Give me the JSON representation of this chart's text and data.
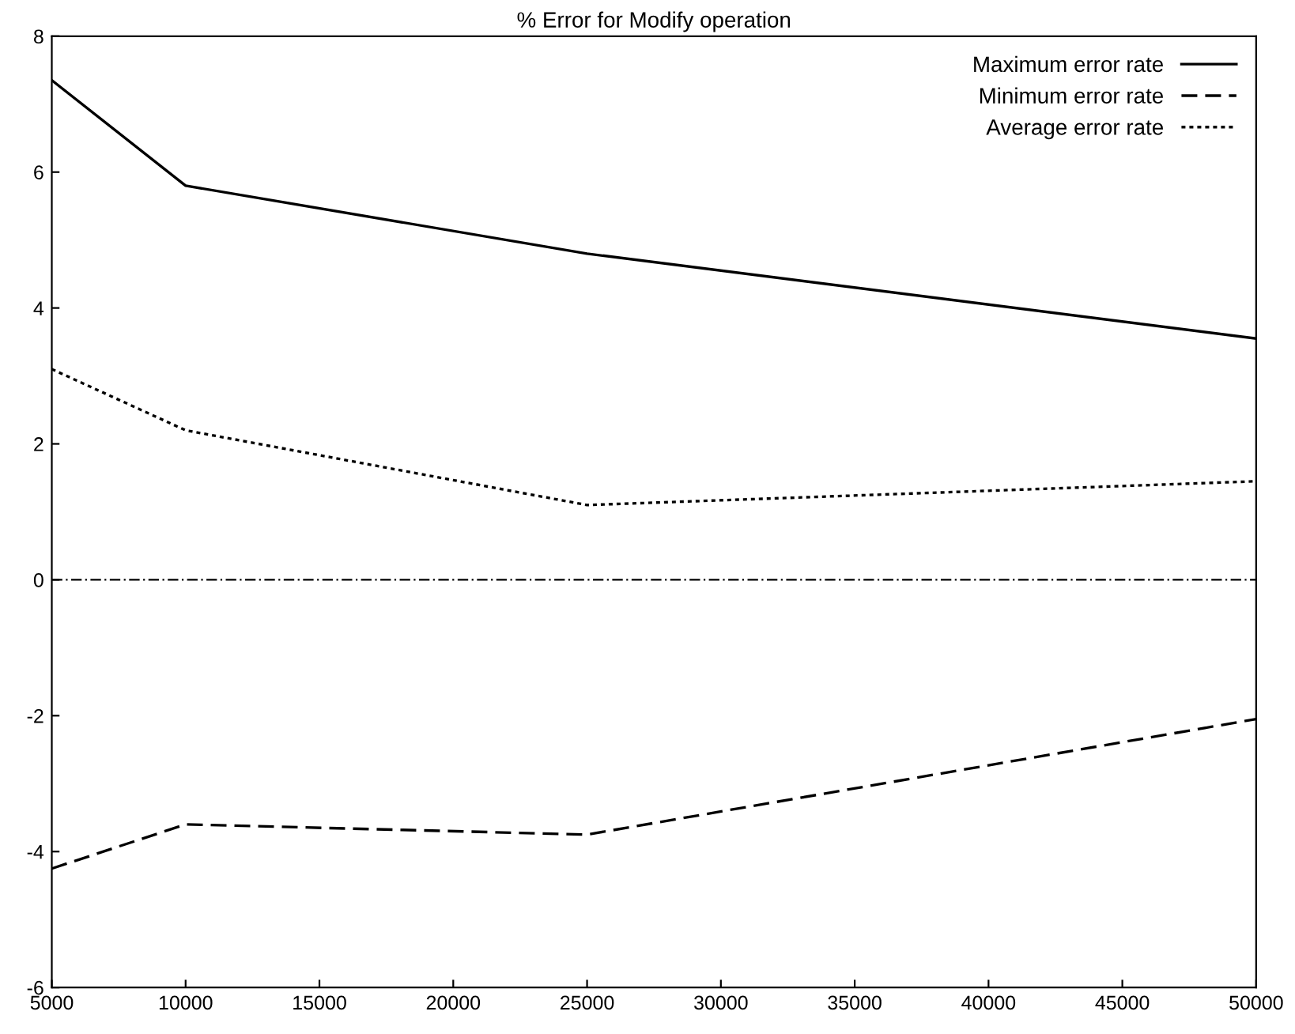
{
  "chart_data": {
    "type": "line",
    "title": "% Error for Modify operation",
    "x": [
      5000,
      10000,
      25000,
      50000
    ],
    "series": [
      {
        "name": "Maximum error rate",
        "color": "#000000",
        "line_style": "solid",
        "values": [
          7.35,
          5.8,
          4.8,
          3.55
        ]
      },
      {
        "name": "Minimum error rate",
        "color": "#000000",
        "line_style": "dashed",
        "values": [
          -4.25,
          -3.6,
          -3.75,
          -2.05
        ]
      },
      {
        "name": "Average error rate",
        "color": "#000000",
        "line_style": "dotted",
        "values": [
          3.1,
          2.2,
          1.1,
          1.45
        ]
      }
    ],
    "ref_lines": [
      {
        "axis": "y",
        "value": 0,
        "color": "#000000"
      }
    ],
    "xlim": [
      5000,
      50000
    ],
    "xticks": [
      5000,
      10000,
      15000,
      20000,
      25000,
      30000,
      35000,
      40000,
      45000,
      50000
    ],
    "ylim": [
      -6,
      8
    ],
    "yticks": [
      -6,
      -4,
      -2,
      0,
      2,
      4,
      6,
      8
    ],
    "grid": false,
    "legend": "top right",
    "marker": "none"
  }
}
